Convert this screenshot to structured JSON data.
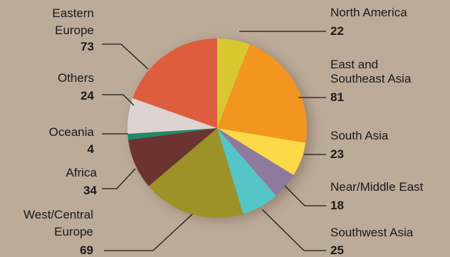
{
  "chart_data": {
    "type": "pie",
    "title": "",
    "unit": "",
    "slices": [
      {
        "label": [
          "North America"
        ],
        "value": 22,
        "color": "#d8c830"
      },
      {
        "label": [
          "East and",
          "Southeast Asia"
        ],
        "value": 81,
        "color": "#f3961f"
      },
      {
        "label": [
          "South Asia"
        ],
        "value": 23,
        "color": "#fbd948"
      },
      {
        "label": [
          "Near/Middle East"
        ],
        "value": 18,
        "color": "#8f7a9e"
      },
      {
        "label": [
          "Southwest Asia"
        ],
        "value": 25,
        "color": "#56c5c8"
      },
      {
        "label": [
          "West/Central",
          "Europe"
        ],
        "value": 69,
        "color": "#9c9228"
      },
      {
        "label": [
          "Africa"
        ],
        "value": 34,
        "color": "#6c3430"
      },
      {
        "label": [
          "Oceania"
        ],
        "value": 4,
        "color": "#1f8a6a"
      },
      {
        "label": [
          "Others"
        ],
        "value": 24,
        "color": "#ddd3d0"
      },
      {
        "label": [
          "Eastern",
          "Europe"
        ],
        "value": 73,
        "color": "#de5d3f"
      }
    ]
  }
}
